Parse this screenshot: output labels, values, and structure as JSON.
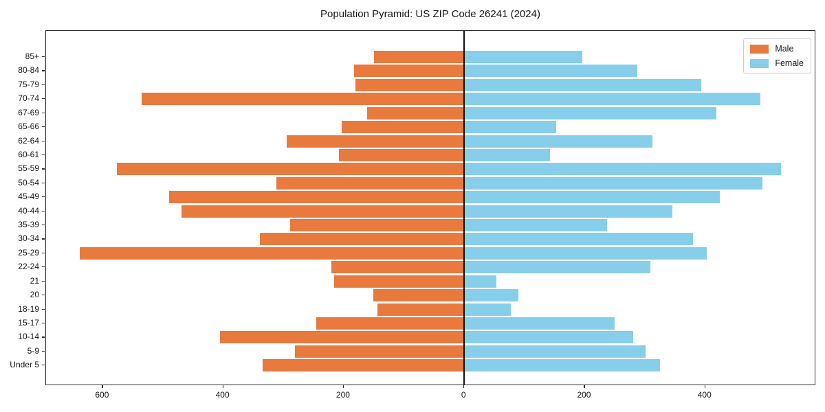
{
  "chart_data": {
    "type": "bar",
    "orientation": "horizontal",
    "subtype": "population-pyramid",
    "title": "Population Pyramid: US ZIP Code 26241 (2024)",
    "xlabel": "",
    "ylabel": "",
    "grid": false,
    "zero_line": true,
    "category_order": "top-to-bottom",
    "categories": [
      "85+",
      "80-84",
      "75-79",
      "70-74",
      "67-69",
      "65-66",
      "62-64",
      "60-61",
      "55-59",
      "50-54",
      "45-49",
      "40-44",
      "35-39",
      "30-34",
      "25-29",
      "22-24",
      "21",
      "20",
      "18-19",
      "15-17",
      "10-14",
      "5-9",
      "Under 5"
    ],
    "series": [
      {
        "name": "Male",
        "side": "left",
        "color": "#E77A3C",
        "values": [
          150,
          183,
          180,
          535,
          161,
          203,
          295,
          208,
          577,
          312,
          490,
          469,
          289,
          339,
          638,
          221,
          216,
          151,
          144,
          245,
          405,
          281,
          334
        ]
      },
      {
        "name": "Female",
        "side": "right",
        "color": "#87CEEB",
        "values": [
          196,
          287,
          394,
          492,
          419,
          153,
          313,
          142,
          526,
          495,
          424,
          345,
          237,
          380,
          403,
          309,
          53,
          90,
          77,
          250,
          280,
          301,
          325
        ]
      }
    ],
    "x_axis": {
      "xlim": [
        -694,
        584
      ],
      "tick_values": [
        -600,
        -400,
        -200,
        0,
        200,
        400
      ],
      "tick_labels": [
        "600",
        "400",
        "200",
        "0",
        "200",
        "400"
      ]
    },
    "legend": {
      "position": "upper right",
      "entries": [
        "Male",
        "Female"
      ]
    }
  }
}
